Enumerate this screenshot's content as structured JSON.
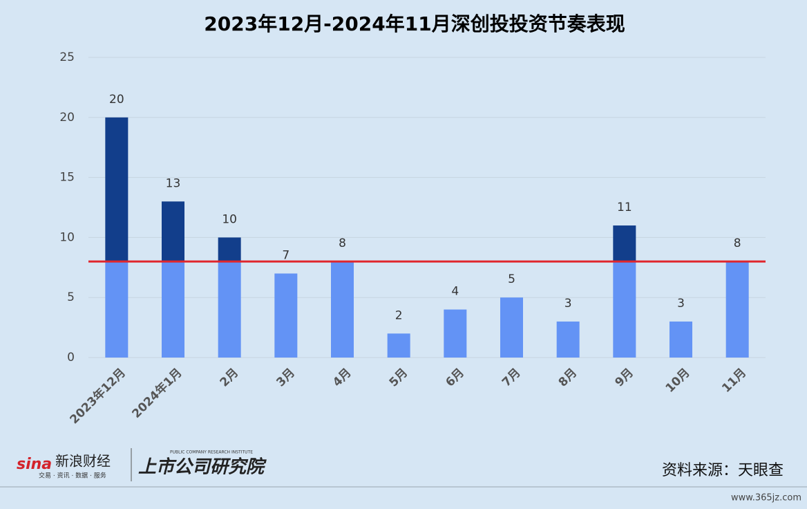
{
  "chart_data": {
    "type": "bar",
    "title": "2023年12月-2024年11月深创投投资节奏表现",
    "categories": [
      "2023年12月",
      "2024年1月",
      "2月",
      "3月",
      "4月",
      "5月",
      "6月",
      "7月",
      "8月",
      "9月",
      "10月",
      "11月"
    ],
    "values": [
      20,
      13,
      10,
      7,
      8,
      2,
      4,
      5,
      3,
      11,
      3,
      8
    ],
    "color": "#6393f5",
    "above_color": "#123e8b",
    "reference_line": {
      "value": 8,
      "color": "#e0262c"
    },
    "ylim": [
      0,
      25
    ],
    "yticks": [
      0,
      5,
      10,
      15,
      20,
      25
    ],
    "grid": true
  },
  "footer": {
    "logo": "sina",
    "brand": "新浪财经",
    "brand_sub": "交易 · 资讯 · 数据 · 服务",
    "institute": "上市公司研究院",
    "institute_sub": "PUBLIC COMPANY RESEARCH INSTITUTE",
    "source": "资料来源：天眼查",
    "watermark": "www.365jz.com"
  }
}
